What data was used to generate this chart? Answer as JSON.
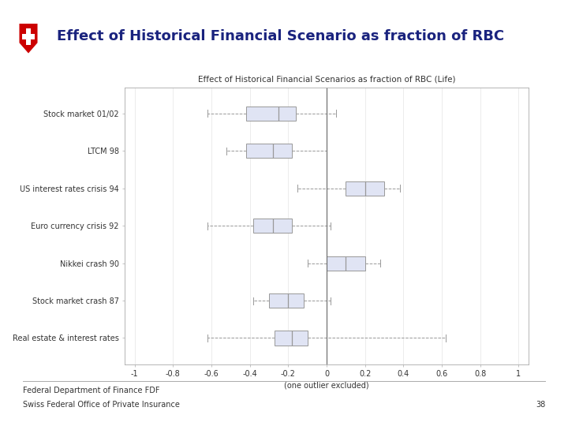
{
  "title_main": "Effect of Historical Financial Scenario as fraction of RBC",
  "chart_title": "Effect of Historical Financial Scenarios as fraction of RBC (Life)",
  "xlabel": "(one outlier excluded)",
  "footer_line1": "Federal Department of Finance FDF",
  "footer_line2": "Swiss Federal Office of Private Insurance",
  "page_number": "38",
  "categories": [
    "Stock market 01/02",
    "LTCM 98",
    "US interest rates crisis 94",
    "Euro currency crisis 92",
    "Nikkei crash 90",
    "Stock market crash 87",
    "Real estate & interest rates"
  ],
  "boxplot_data": [
    {
      "whislo": -0.62,
      "q1": -0.42,
      "med": -0.25,
      "q3": -0.16,
      "whishi": 0.05
    },
    {
      "whislo": -0.52,
      "q1": -0.42,
      "med": -0.28,
      "q3": -0.18,
      "whishi": 0.0
    },
    {
      "whislo": -0.15,
      "q1": 0.1,
      "med": 0.2,
      "q3": 0.3,
      "whishi": 0.38
    },
    {
      "whislo": -0.62,
      "q1": -0.38,
      "med": -0.28,
      "q3": -0.18,
      "whishi": 0.02
    },
    {
      "whislo": -0.1,
      "q1": 0.0,
      "med": 0.1,
      "q3": 0.2,
      "whishi": 0.28
    },
    {
      "whislo": -0.38,
      "q1": -0.3,
      "med": -0.2,
      "q3": -0.12,
      "whishi": 0.02
    },
    {
      "whislo": -0.62,
      "q1": -0.27,
      "med": -0.18,
      "q3": -0.1,
      "whishi": 0.62
    }
  ],
  "xlim": [
    -1.05,
    1.05
  ],
  "xticks": [
    -1,
    -0.8,
    -0.6,
    -0.4,
    -0.2,
    0,
    0.2,
    0.4,
    0.6,
    0.8,
    1
  ],
  "xtick_labels": [
    "-1",
    "-0.8",
    "-0.6",
    "-0.4",
    "-0.2",
    "0",
    "0.2",
    "0.4",
    "0.6",
    "0.8",
    "1"
  ],
  "box_facecolor": "#e0e4f4",
  "box_edgecolor": "#999999",
  "median_color": "#999999",
  "whisker_color": "#999999",
  "cap_color": "#999999",
  "background_color": "#ffffff",
  "chart_bg": "#ffffff",
  "grid_color": "#dddddd",
  "vline_color": "#666666",
  "title_color": "#1a237e",
  "shield_color": "#cc0000"
}
